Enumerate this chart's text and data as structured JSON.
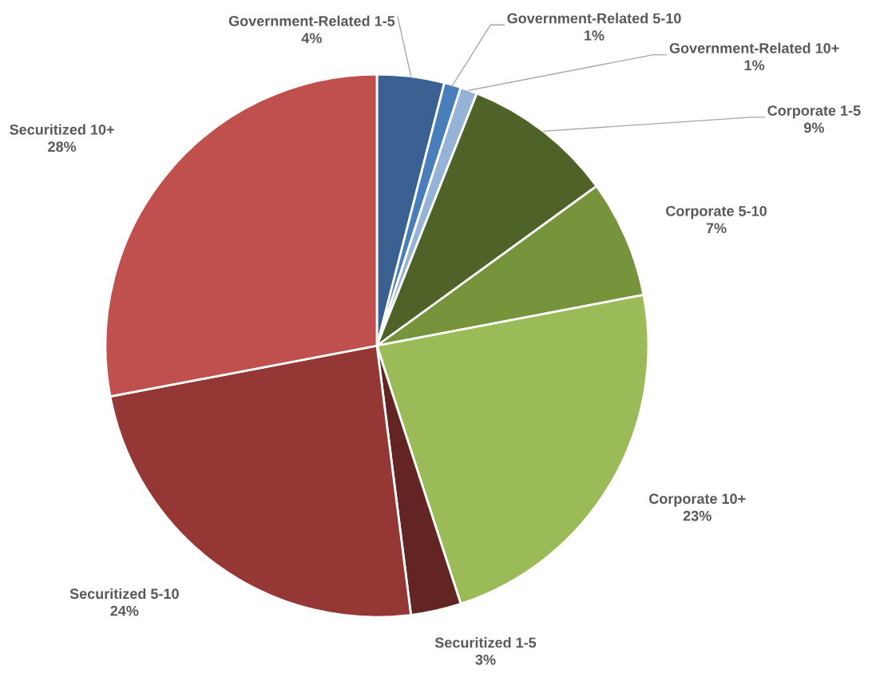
{
  "chart_data": {
    "type": "pie",
    "categories": [
      "Government-Related 1-5",
      "Government-Related 5-10",
      "Government-Related 10+",
      "Corporate 1-5",
      "Corporate 5-10",
      "Corporate 10+",
      "Securitized 1-5",
      "Securitized 5-10",
      "Securitized 10+"
    ],
    "values": [
      4,
      1,
      1,
      9,
      7,
      23,
      3,
      24,
      28
    ],
    "colors": [
      "#3a6192",
      "#4a7ebb",
      "#95b3d7",
      "#4f6228",
      "#77933c",
      "#9bbb59",
      "#632523",
      "#953735",
      "#c0504d"
    ],
    "value_labels": [
      "4%",
      "1%",
      "1%",
      "9%",
      "7%",
      "23%",
      "3%",
      "24%",
      "28%"
    ],
    "legend": false
  }
}
